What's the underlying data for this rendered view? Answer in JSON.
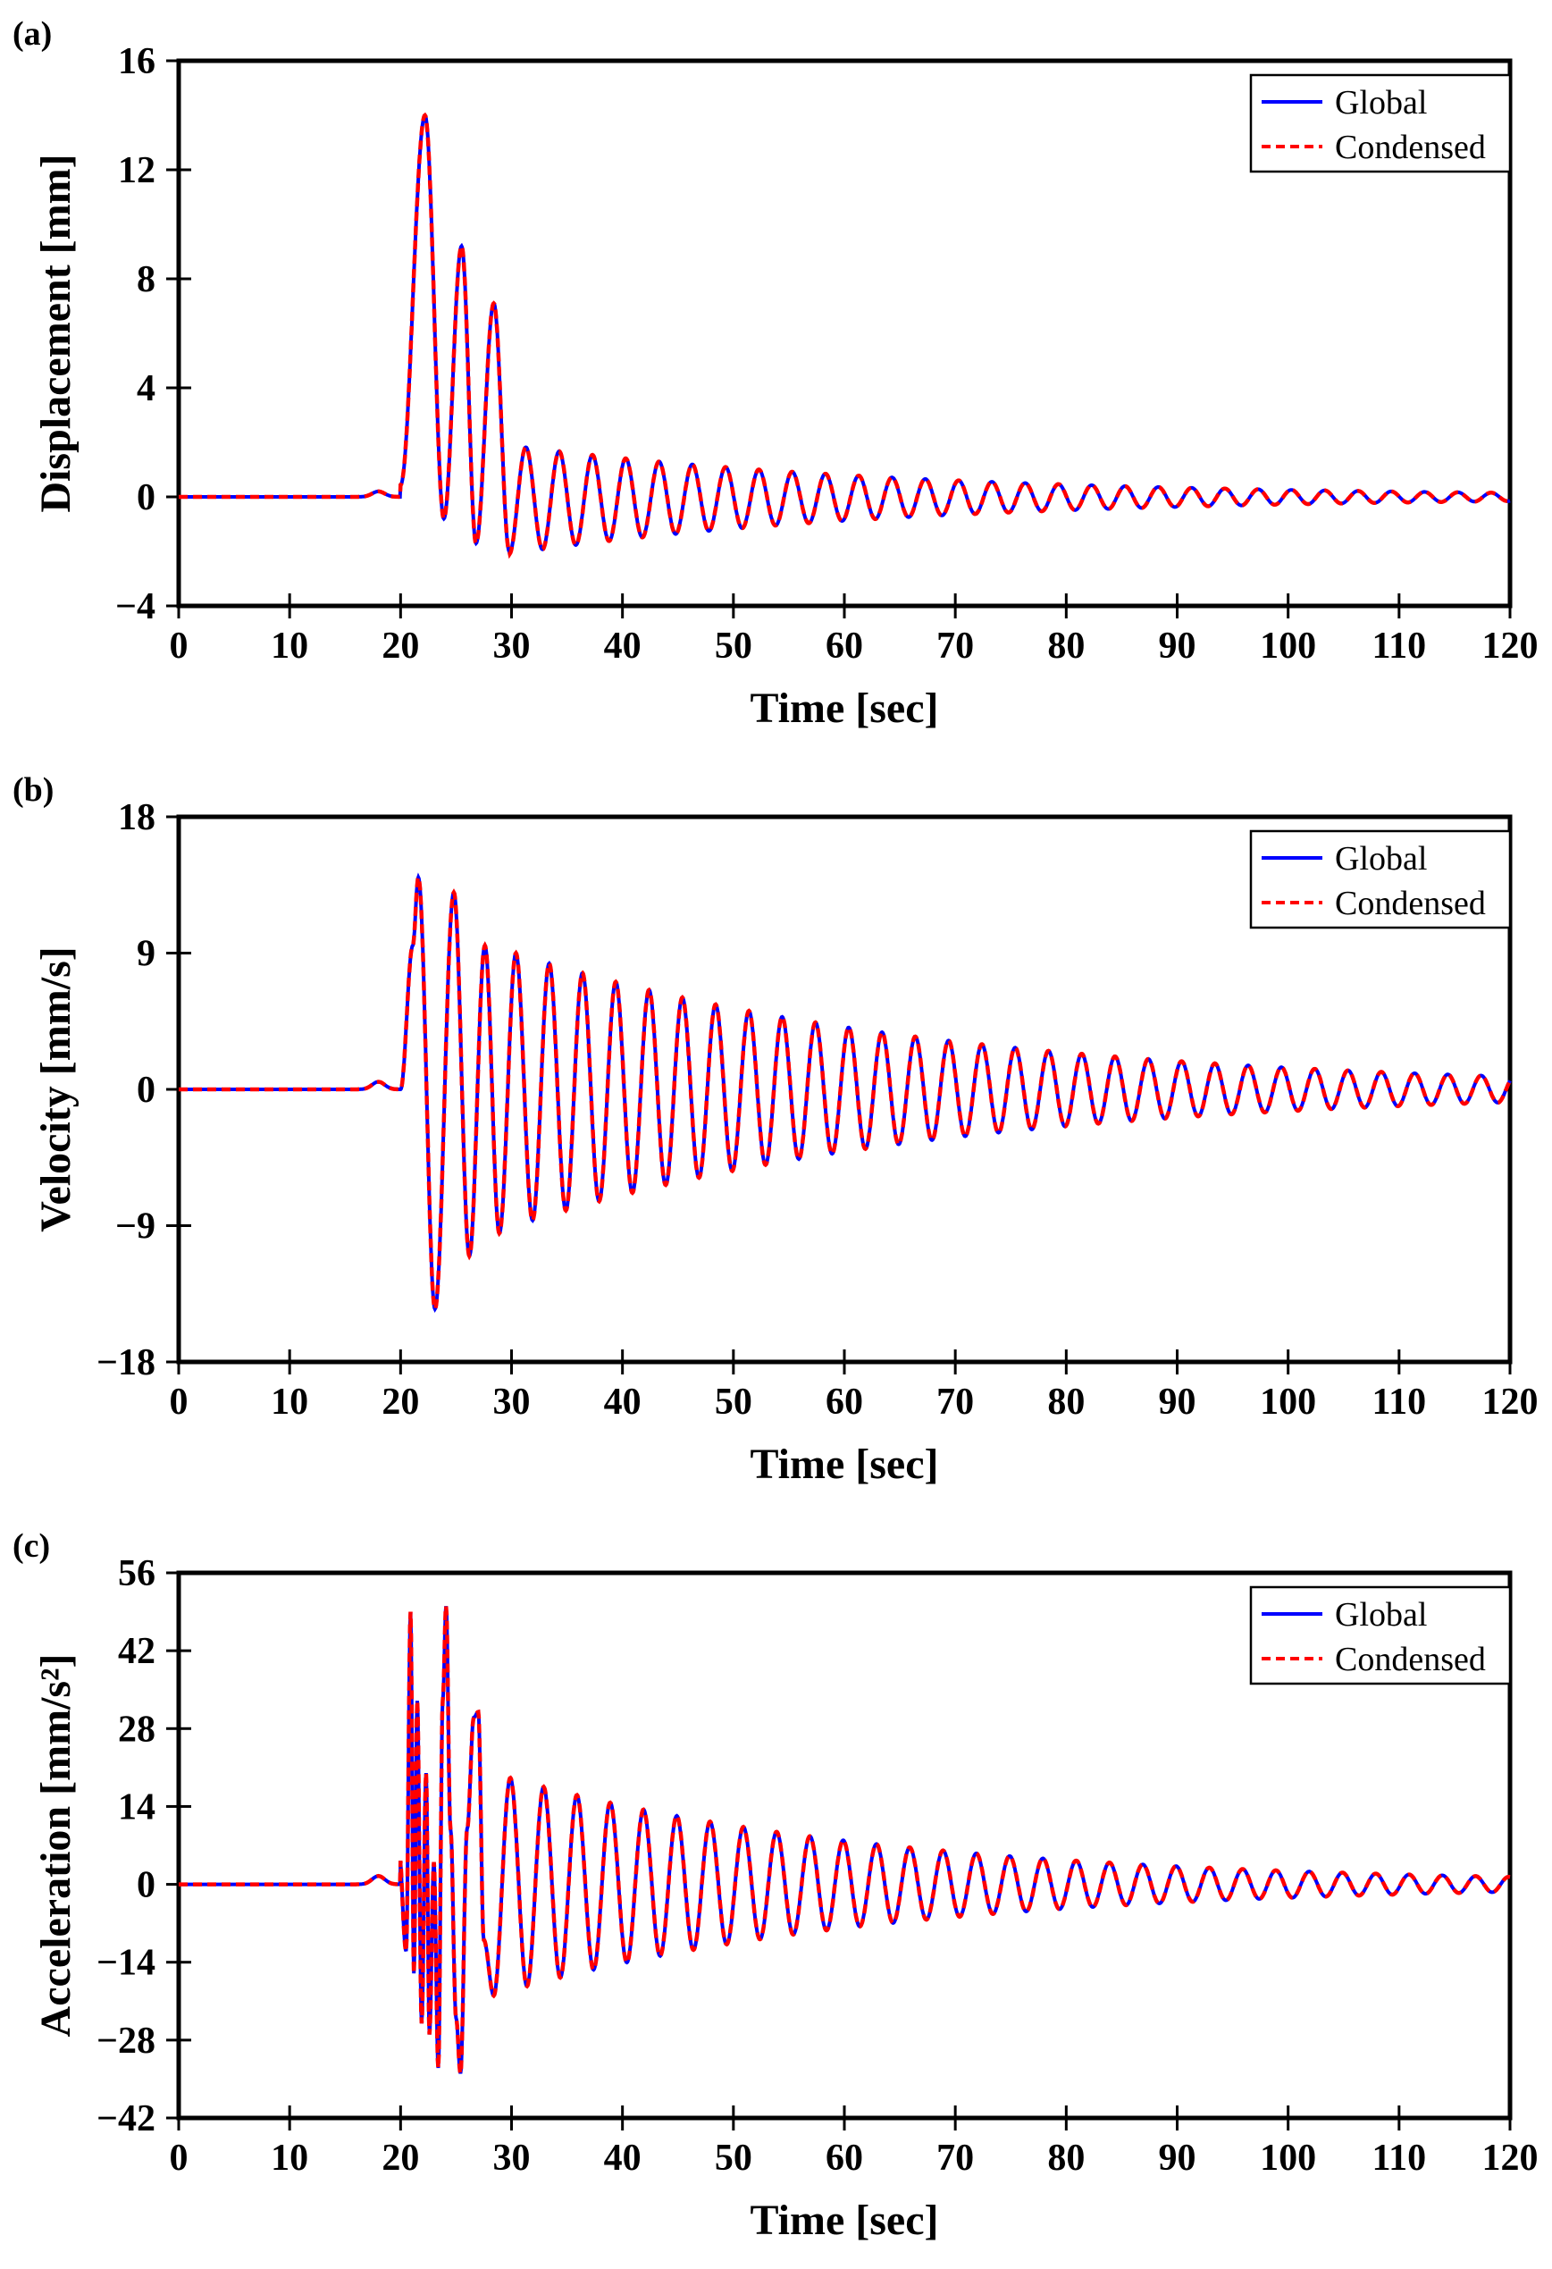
{
  "figure": {
    "panels": [
      {
        "tag": "(a)",
        "ylabel": "Displacement [mm]"
      },
      {
        "tag": "(b)",
        "ylabel": "Velocity [mm/s]"
      },
      {
        "tag": "(c)",
        "ylabel": "Acceleration [mm/s²]"
      }
    ]
  },
  "chart_data": [
    {
      "type": "line",
      "panel_label": "(a)",
      "title": "",
      "xlabel": "Time [sec]",
      "ylabel": "Displacement [mm]",
      "xlim": [
        0,
        120
      ],
      "ylim": [
        -4,
        16
      ],
      "xticks": [
        0,
        10,
        20,
        30,
        40,
        50,
        60,
        70,
        80,
        90,
        100,
        110,
        120
      ],
      "yticks": [
        -4,
        0,
        4,
        8,
        12,
        16
      ],
      "ytick_labels": [
        "−4",
        "0",
        "4",
        "8",
        "12",
        "16"
      ],
      "grid": false,
      "legend_position": "top-right",
      "series": [
        {
          "name": "Global",
          "color": "#0000ff",
          "style": "solid"
        },
        {
          "name": "Condensed",
          "color": "#ff0000",
          "style": "dashed"
        }
      ],
      "signal": {
        "t_start": 0,
        "t_end": 120,
        "onset": 20,
        "period": 3.0,
        "first_peak_time": 22.2,
        "peaks": [
          {
            "t": 22.2,
            "v": 14.0
          },
          {
            "t": 23.9,
            "v": -0.8
          },
          {
            "t": 25.5,
            "v": 9.2
          },
          {
            "t": 26.8,
            "v": -1.7
          },
          {
            "t": 28.4,
            "v": 7.1
          },
          {
            "t": 29.8,
            "v": -2.0
          }
        ],
        "pre_onset_bump": {
          "t": 18.0,
          "v": 0.2
        },
        "max_amplitude": 2.0,
        "decay_time_constant": 35,
        "offset_at_onset": 2.2,
        "offset_decay": 2.5
      }
    },
    {
      "type": "line",
      "panel_label": "(b)",
      "title": "",
      "xlabel": "Time [sec]",
      "ylabel": "Velocity [mm/s]",
      "xlim": [
        0,
        120
      ],
      "ylim": [
        -18,
        18
      ],
      "xticks": [
        0,
        10,
        20,
        30,
        40,
        50,
        60,
        70,
        80,
        90,
        100,
        110,
        120
      ],
      "yticks": [
        -18,
        -9,
        0,
        9,
        18
      ],
      "ytick_labels": [
        "−18",
        "−9",
        "0",
        "9",
        "18"
      ],
      "grid": false,
      "legend_position": "top-right",
      "series": [
        {
          "name": "Global",
          "color": "#0000ff",
          "style": "solid"
        },
        {
          "name": "Condensed",
          "color": "#ff0000",
          "style": "dashed"
        }
      ],
      "signal": {
        "t_start": 0,
        "t_end": 120,
        "onset": 20,
        "period": 3.0,
        "first_peak_time": 21.6,
        "peaks": [
          {
            "t": 21.1,
            "v": 9.5
          },
          {
            "t": 21.6,
            "v": 14.0
          },
          {
            "t": 23.1,
            "v": -14.5
          },
          {
            "t": 24.8,
            "v": 13.0
          },
          {
            "t": 26.2,
            "v": -11.0
          },
          {
            "t": 27.6,
            "v": 9.5
          },
          {
            "t": 28.9,
            "v": -9.5
          },
          {
            "t": 30.4,
            "v": 9.0
          }
        ],
        "pre_onset_bump": {
          "t": 18.0,
          "v": 0.5
        },
        "max_amplitude": 9.0,
        "decay_time_constant": 38
      }
    },
    {
      "type": "line",
      "panel_label": "(c)",
      "title": "",
      "xlabel": "Time [sec]",
      "ylabel": "Acceleration [mm/s²]",
      "xlim": [
        0,
        120
      ],
      "ylim": [
        -42,
        56
      ],
      "xticks": [
        0,
        10,
        20,
        30,
        40,
        50,
        60,
        70,
        80,
        90,
        100,
        110,
        120
      ],
      "yticks": [
        -42,
        -28,
        -14,
        0,
        14,
        28,
        42,
        56
      ],
      "ytick_labels": [
        "−42",
        "−28",
        "−14",
        "0",
        "14",
        "28",
        "42",
        "56"
      ],
      "grid": false,
      "legend_position": "top-right",
      "series": [
        {
          "name": "Global",
          "color": "#0000ff",
          "style": "solid"
        },
        {
          "name": "Condensed",
          "color": "#ff0000",
          "style": "dashed"
        }
      ],
      "signal": {
        "t_start": 0,
        "t_end": 120,
        "onset": 20,
        "period": 3.0,
        "first_peak_time": 30.0,
        "peaks": [
          {
            "t": 19.8,
            "v": 8
          },
          {
            "t": 20.5,
            "v": -12
          },
          {
            "t": 20.9,
            "v": 49
          },
          {
            "t": 21.2,
            "v": -16
          },
          {
            "t": 21.5,
            "v": 33
          },
          {
            "t": 21.9,
            "v": -25
          },
          {
            "t": 22.3,
            "v": 20
          },
          {
            "t": 22.6,
            "v": -27
          },
          {
            "t": 23.0,
            "v": 4
          },
          {
            "t": 23.4,
            "v": -33
          },
          {
            "t": 23.8,
            "v": 33
          },
          {
            "t": 24.1,
            "v": 50
          },
          {
            "t": 24.5,
            "v": 10
          },
          {
            "t": 25.0,
            "v": -24
          },
          {
            "t": 25.4,
            "v": -34
          },
          {
            "t": 26.0,
            "v": 10
          },
          {
            "t": 26.6,
            "v": 30
          },
          {
            "t": 27.0,
            "v": 31
          },
          {
            "t": 27.5,
            "v": -10
          },
          {
            "t": 28.4,
            "v": -20
          }
        ],
        "pre_onset_bump": {
          "t": 18.0,
          "v": 1.5
        },
        "max_amplitude": 24.0,
        "decay_time_constant": 34
      }
    }
  ]
}
